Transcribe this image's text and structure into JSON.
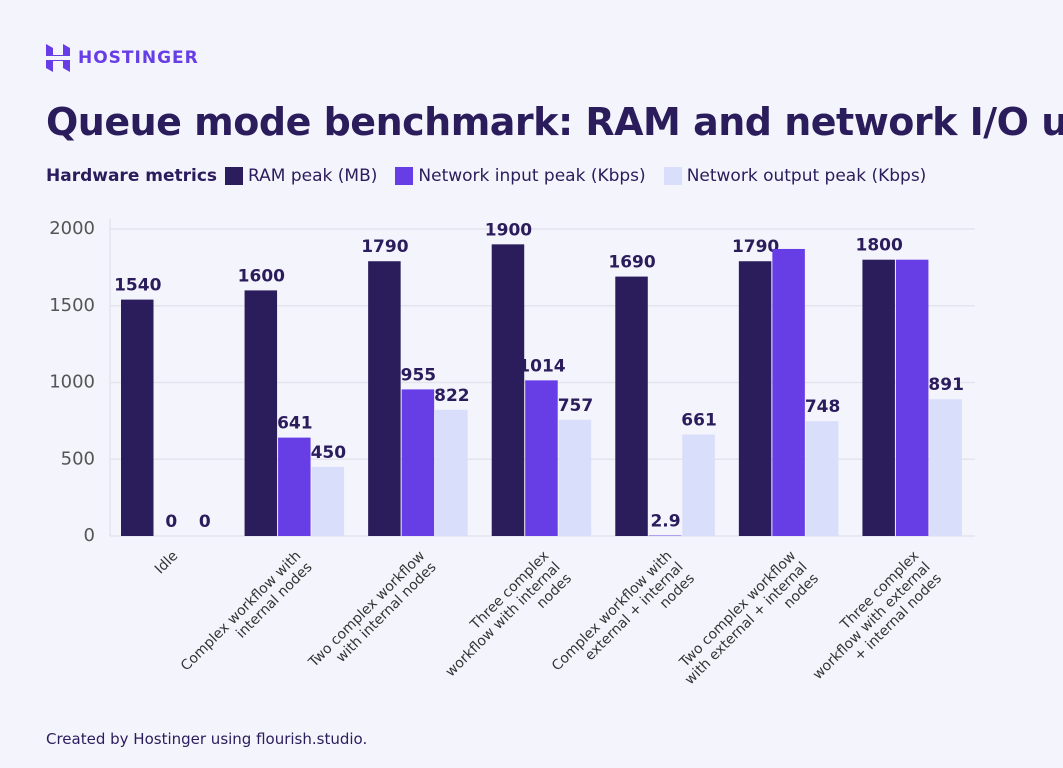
{
  "brand": "HOSTINGER",
  "chart_data": {
    "type": "bar",
    "title": "Queue mode benchmark: RAM and network I/O usage",
    "legend_title": "Hardware metrics",
    "categories": [
      "Idle",
      "Complex workflow with internal nodes",
      "Two complex workflow with internal nodes",
      "Three complex workflow with internal nodes",
      "Complex workflow with external + internal nodes",
      "Two complex workflow with external + internal nodes",
      "Three complex workflow with external + internal nodes"
    ],
    "series": [
      {
        "name": "RAM peak (MB)",
        "color": "#2b1c5c",
        "values": [
          1540,
          1600,
          1790,
          1900,
          1690,
          1790,
          1800
        ]
      },
      {
        "name": "Network input peak (Kbps)",
        "color": "#673de6",
        "values": [
          0,
          641,
          955,
          1014,
          2.9,
          1870,
          1800
        ],
        "value_labels": [
          "0",
          "641",
          "955",
          "1014",
          "2.9",
          null,
          null
        ]
      },
      {
        "name": "Network output peak (Kbps)",
        "color": "#d9defb",
        "values": [
          0,
          450,
          822,
          757,
          661,
          748,
          891
        ]
      }
    ],
    "ylim": [
      0,
      2000
    ],
    "yticks": [
      0,
      500,
      1000,
      1500,
      2000
    ],
    "grid": true,
    "footer": "Created by Hostinger using flourish.studio."
  }
}
